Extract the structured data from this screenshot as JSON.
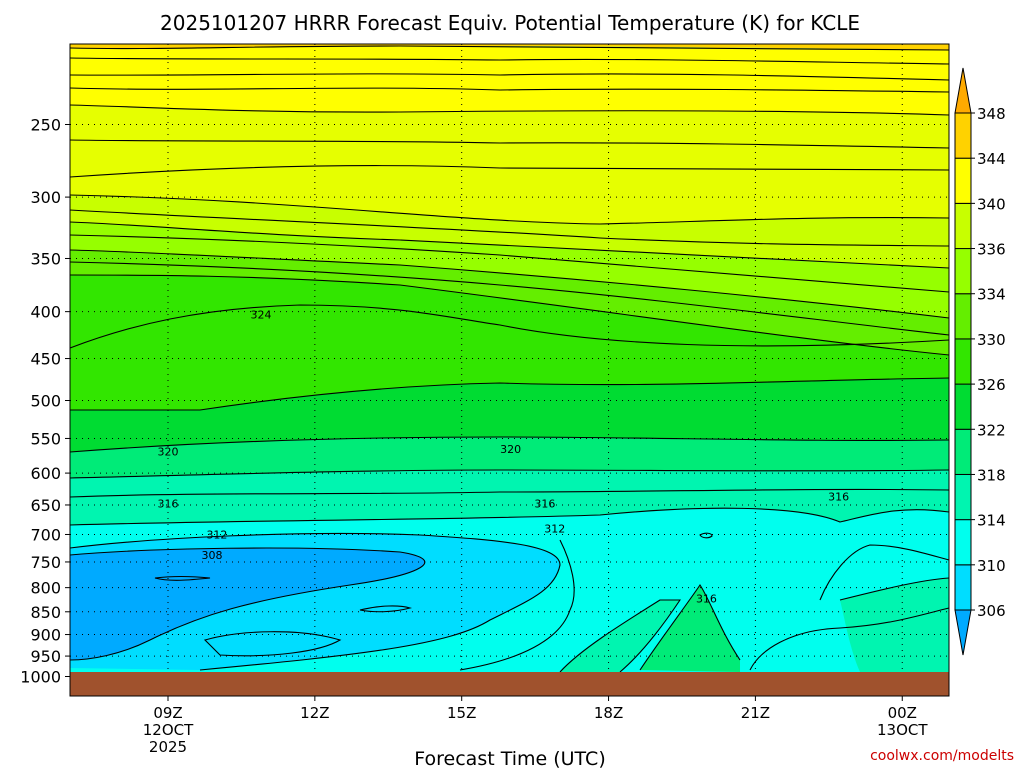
{
  "chart_data": {
    "type": "heatmap",
    "title": "2025101207 HRRR Forecast Equiv. Potential Temperature (K) for KCLE",
    "xlabel": "Forecast Time (UTC)",
    "ylabel": "",
    "watermark": "coolwx.com/modelts",
    "x_ticks": [
      {
        "hour": 9,
        "lines": [
          "09Z",
          "12OCT",
          "2025"
        ]
      },
      {
        "hour": 12,
        "lines": [
          "12Z"
        ]
      },
      {
        "hour": 15,
        "lines": [
          "15Z"
        ]
      },
      {
        "hour": 18,
        "lines": [
          "18Z"
        ]
      },
      {
        "hour": 21,
        "lines": [
          "21Z"
        ]
      },
      {
        "hour": 24,
        "lines": [
          "00Z",
          "13OCT"
        ]
      }
    ],
    "xlim_hours": [
      7,
      25
    ],
    "y_scale": "log-pressure",
    "ylim_hpa": [
      1000,
      200
    ],
    "y_ticks": [
      250,
      300,
      350,
      400,
      450,
      500,
      550,
      600,
      650,
      700,
      750,
      800,
      850,
      900,
      950,
      1000
    ],
    "y_tick_labels": [
      "250",
      "300",
      "350",
      "400",
      "450",
      "500",
      "550",
      "600",
      "650",
      "700",
      "750",
      "800",
      "850",
      "900",
      "950",
      "1000"
    ],
    "colorbar": {
      "levels": [
        306,
        310,
        314,
        318,
        322,
        326,
        330,
        334,
        336,
        340,
        344,
        348
      ],
      "level_labels": [
        "306",
        "310",
        "314",
        "318",
        "322",
        "326",
        "330",
        "334",
        "336",
        "340",
        "344",
        "348"
      ],
      "colors": [
        "#00aaff",
        "#00ddff",
        "#00ffee",
        "#00f5b0",
        "#00eb78",
        "#00dc32",
        "#32e600",
        "#64ee00",
        "#96ff00",
        "#c8ff00",
        "#ffff00",
        "#ffd200",
        "#ffaa00"
      ]
    },
    "contour_labels": [
      {
        "value": 324,
        "text": "324",
        "hour": 10.9,
        "hpa": 403
      },
      {
        "value": 320,
        "text": "320",
        "hour": 9.0,
        "hpa": 568
      },
      {
        "value": 320,
        "text": "320",
        "hour": 16.0,
        "hpa": 565
      },
      {
        "value": 316,
        "text": "316",
        "hour": 9.0,
        "hpa": 648
      },
      {
        "value": 316,
        "text": "316",
        "hour": 16.7,
        "hpa": 648
      },
      {
        "value": 316,
        "text": "316",
        "hour": 22.7,
        "hpa": 636
      },
      {
        "value": 312,
        "text": "312",
        "hour": 10.0,
        "hpa": 700
      },
      {
        "value": 312,
        "text": "312",
        "hour": 16.9,
        "hpa": 690
      },
      {
        "value": 308,
        "text": "308",
        "hour": 9.9,
        "hpa": 737
      },
      {
        "value": 316,
        "text": "316",
        "hour": 20.0,
        "hpa": 822
      }
    ]
  }
}
